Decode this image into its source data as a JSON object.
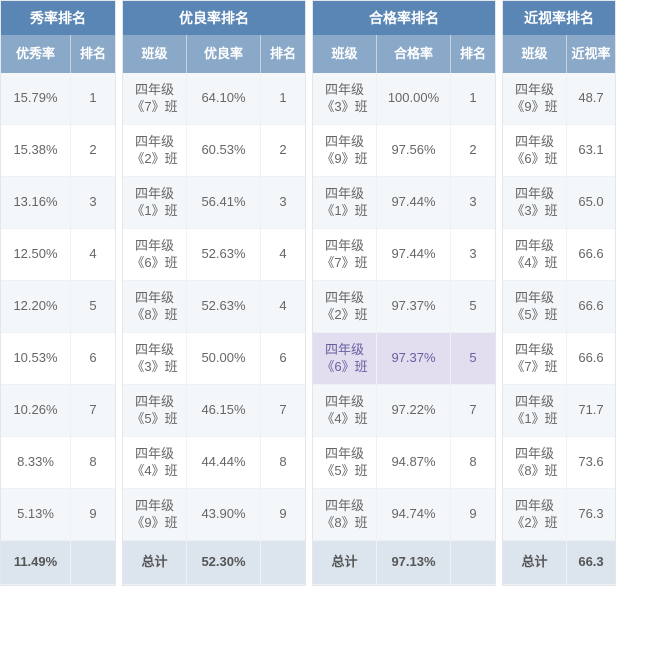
{
  "colors": {
    "title_bg": "#5a86b5",
    "header_bg": "#8aa9c8",
    "row_odd": "#f4f7fa",
    "row_even": "#ffffff",
    "highlight": "#e2deef",
    "total_bg": "#dce5ee",
    "border": "#e3e7ec"
  },
  "labels": {
    "class_col": "班级",
    "rank_col": "排名",
    "total": "总计"
  },
  "panels": [
    {
      "title": "秀率排名",
      "rate_header": "优秀率",
      "show_class": false,
      "total_rate": "11.49%",
      "rows": [
        {
          "class": "",
          "rate": "15.79%",
          "rank": "1"
        },
        {
          "class": "",
          "rate": "15.38%",
          "rank": "2"
        },
        {
          "class": "",
          "rate": "13.16%",
          "rank": "3"
        },
        {
          "class": "",
          "rate": "12.50%",
          "rank": "4"
        },
        {
          "class": "",
          "rate": "12.20%",
          "rank": "5"
        },
        {
          "class": "",
          "rate": "10.53%",
          "rank": "6"
        },
        {
          "class": "",
          "rate": "10.26%",
          "rank": "7"
        },
        {
          "class": "",
          "rate": "8.33%",
          "rank": "8"
        },
        {
          "class": "",
          "rate": "5.13%",
          "rank": "9"
        }
      ]
    },
    {
      "title": "优良率排名",
      "rate_header": "优良率",
      "show_class": true,
      "total_rate": "52.30%",
      "rows": [
        {
          "class": "四年级《7》班",
          "rate": "64.10%",
          "rank": "1"
        },
        {
          "class": "四年级《2》班",
          "rate": "60.53%",
          "rank": "2"
        },
        {
          "class": "四年级《1》班",
          "rate": "56.41%",
          "rank": "3"
        },
        {
          "class": "四年级《6》班",
          "rate": "52.63%",
          "rank": "4"
        },
        {
          "class": "四年级《8》班",
          "rate": "52.63%",
          "rank": "4"
        },
        {
          "class": "四年级《3》班",
          "rate": "50.00%",
          "rank": "6"
        },
        {
          "class": "四年级《5》班",
          "rate": "46.15%",
          "rank": "7"
        },
        {
          "class": "四年级《4》班",
          "rate": "44.44%",
          "rank": "8"
        },
        {
          "class": "四年级《9》班",
          "rate": "43.90%",
          "rank": "9"
        }
      ]
    },
    {
      "title": "合格率排名",
      "rate_header": "合格率",
      "show_class": true,
      "total_rate": "97.13%",
      "highlight_row": 5,
      "rows": [
        {
          "class": "四年级《3》班",
          "rate": "100.00%",
          "rank": "1"
        },
        {
          "class": "四年级《9》班",
          "rate": "97.56%",
          "rank": "2"
        },
        {
          "class": "四年级《1》班",
          "rate": "97.44%",
          "rank": "3"
        },
        {
          "class": "四年级《7》班",
          "rate": "97.44%",
          "rank": "3"
        },
        {
          "class": "四年级《2》班",
          "rate": "97.37%",
          "rank": "5"
        },
        {
          "class": "四年级《6》班",
          "rate": "97.37%",
          "rank": "5"
        },
        {
          "class": "四年级《4》班",
          "rate": "97.22%",
          "rank": "7"
        },
        {
          "class": "四年级《5》班",
          "rate": "94.87%",
          "rank": "8"
        },
        {
          "class": "四年级《8》班",
          "rate": "94.74%",
          "rank": "9"
        }
      ]
    },
    {
      "title": "近视率排名",
      "rate_header": "近视率",
      "show_class": true,
      "show_rank": false,
      "total_rate": "66.3",
      "rows": [
        {
          "class": "四年级《9》班",
          "rate": "48.7"
        },
        {
          "class": "四年级《6》班",
          "rate": "63.1"
        },
        {
          "class": "四年级《3》班",
          "rate": "65.0"
        },
        {
          "class": "四年级《4》班",
          "rate": "66.6"
        },
        {
          "class": "四年级《5》班",
          "rate": "66.6"
        },
        {
          "class": "四年级《7》班",
          "rate": "66.6"
        },
        {
          "class": "四年级《1》班",
          "rate": "71.7"
        },
        {
          "class": "四年级《8》班",
          "rate": "73.6"
        },
        {
          "class": "四年级《2》班",
          "rate": "76.3"
        }
      ]
    }
  ]
}
